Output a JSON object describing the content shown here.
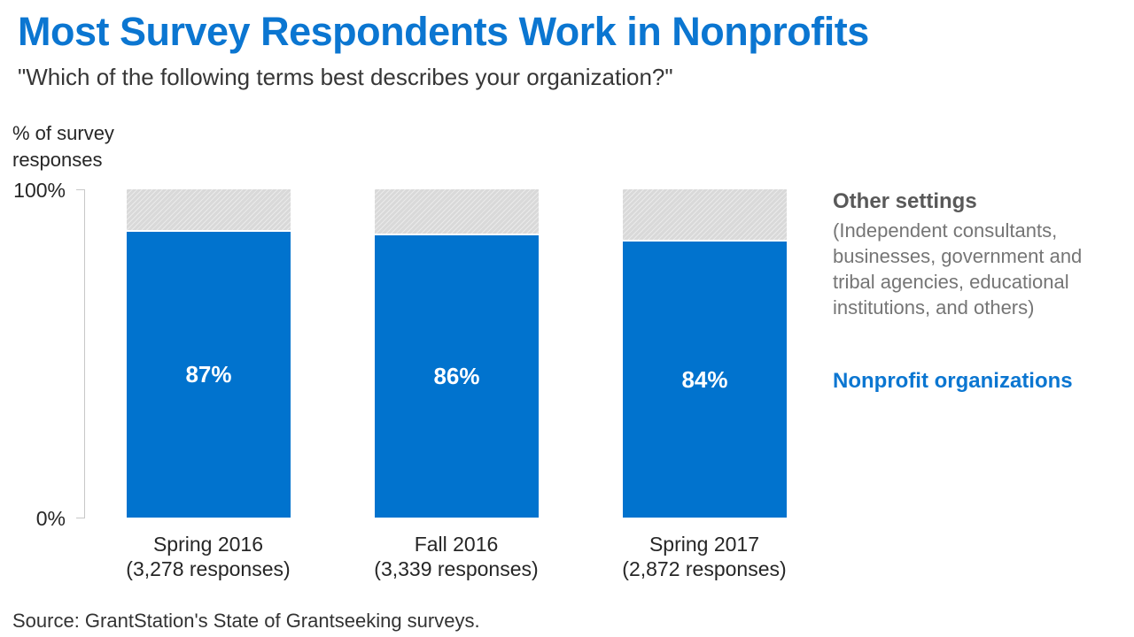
{
  "header": {
    "title": "Most Survey Respondents Work in Nonprofits",
    "subtitle": "\"Which of the following terms best describes your organization?\""
  },
  "axis": {
    "y_label": "% of survey\nresponses",
    "tick_top": "100%",
    "tick_bottom": "0%"
  },
  "legend": {
    "other_title": "Other settings",
    "other_desc": "(Independent consultants,\nbusinesses, government and\ntribal agencies, educational\ninstitutions, and others)",
    "nonprofit_label": "Nonprofit organizations"
  },
  "source": "Source: GrantStation's State of Grantseeking surveys.",
  "colors": {
    "title_blue": "#0b76d1",
    "bar_blue": "#0173ce",
    "bar_gray": "#d9d9d9",
    "legend_gray_title": "#595959",
    "legend_gray_text": "#757575",
    "axis_line": "#c8c8c8",
    "text_dark": "#262626",
    "bar_value_text": "#ffffff"
  },
  "chart_data": {
    "type": "bar",
    "stacked": true,
    "title": "Most Survey Respondents Work in Nonprofits",
    "subtitle": "\"Which of the following terms best describes your organization?\"",
    "ylabel": "% of survey responses",
    "ylim": [
      0,
      100
    ],
    "ytick_labels": [
      "100%",
      "0%"
    ],
    "grid": false,
    "legend_position": "right",
    "categories": [
      {
        "label": "Spring 2016",
        "sublabel": "(3,278 responses)"
      },
      {
        "label": "Fall 2016",
        "sublabel": "(3,339 responses)"
      },
      {
        "label": "Spring 2017",
        "sublabel": "(2,872 responses)"
      }
    ],
    "series": [
      {
        "name": "Nonprofit organizations",
        "color": "#0173ce",
        "values": [
          87,
          86,
          84
        ],
        "value_labels": [
          "87%",
          "86%",
          "84%"
        ]
      },
      {
        "name": "Other settings (Independent consultants, businesses, government and tribal agencies, educational institutions, and others)",
        "color": "#d9d9d9",
        "values": [
          13,
          14,
          16
        ]
      }
    ],
    "source": "Source: GrantStation's State of Grantseeking surveys."
  }
}
